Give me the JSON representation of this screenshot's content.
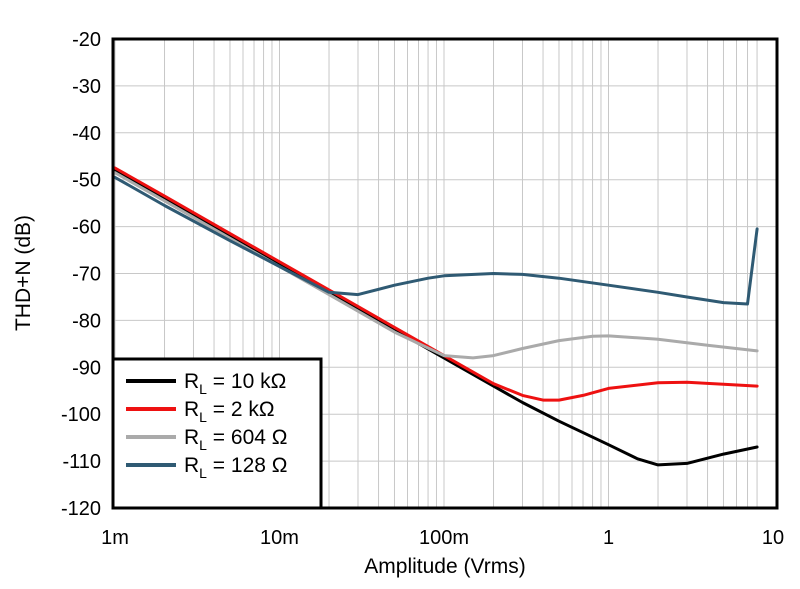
{
  "chart_data": {
    "type": "line",
    "title": "",
    "xlabel": "Amplitude (Vrms)",
    "ylabel": "THD+N (dB)",
    "xscale": "log",
    "xlim": [
      0.001,
      8
    ],
    "ylim": [
      -120,
      -20
    ],
    "x_ticks": [
      0.001,
      0.01,
      0.1,
      1,
      10
    ],
    "x_tick_labels": [
      "1m",
      "10m",
      "100m",
      "1",
      "10"
    ],
    "y_ticks": [
      -20,
      -30,
      -40,
      -50,
      -60,
      -70,
      -80,
      -90,
      -100,
      -110,
      -120
    ],
    "y_tick_labels": [
      "-20",
      "-30",
      "-40",
      "-50",
      "-60",
      "-70",
      "-80",
      "-90",
      "-100",
      "-110",
      "-120"
    ],
    "grid": true,
    "legend_position": "bottom-left",
    "series": [
      {
        "name": "R_L = 10 kΩ",
        "label_main": "R",
        "label_sub": "L",
        "label_rest": " = 10 kΩ",
        "color": "#000000",
        "x": [
          0.001,
          0.002,
          0.005,
          0.01,
          0.02,
          0.05,
          0.1,
          0.2,
          0.3,
          0.5,
          1.0,
          1.5,
          2.0,
          3.0,
          5.0,
          8.0
        ],
        "y": [
          -48,
          -54,
          -62,
          -68,
          -74,
          -82,
          -88,
          -94,
          -97.5,
          -101.5,
          -106.5,
          -109.5,
          -110.8,
          -110.5,
          -108.5,
          -107
        ]
      },
      {
        "name": "R_L = 2 kΩ",
        "label_main": "R",
        "label_sub": "L",
        "label_rest": " = 2 kΩ",
        "color": "#ee1111",
        "x": [
          0.001,
          0.002,
          0.005,
          0.01,
          0.02,
          0.05,
          0.1,
          0.2,
          0.3,
          0.4,
          0.5,
          0.7,
          1.0,
          2.0,
          3.0,
          5.0,
          8.0
        ],
        "y": [
          -47.5,
          -53.5,
          -61.5,
          -67.5,
          -73.5,
          -81.5,
          -87.5,
          -93.5,
          -96,
          -97,
          -97,
          -96,
          -94.5,
          -93.3,
          -93.2,
          -93.6,
          -94
        ]
      },
      {
        "name": "R_L = 604 Ω",
        "label_main": "R",
        "label_sub": "L",
        "label_rest": " = 604 Ω",
        "color": "#aaaaaa",
        "x": [
          0.001,
          0.002,
          0.005,
          0.01,
          0.02,
          0.05,
          0.1,
          0.15,
          0.2,
          0.3,
          0.5,
          0.8,
          1.0,
          2.0,
          4.0,
          8.0
        ],
        "y": [
          -48.5,
          -54.5,
          -62.5,
          -68.5,
          -74.5,
          -82.5,
          -87.5,
          -88,
          -87.5,
          -86,
          -84.3,
          -83.4,
          -83.3,
          -84,
          -85.3,
          -86.5
        ]
      },
      {
        "name": "R_L = 128 Ω",
        "label_main": "R",
        "label_sub": "L",
        "label_rest": " = 128 Ω",
        "color": "#2f5a73",
        "x": [
          0.001,
          0.002,
          0.005,
          0.01,
          0.02,
          0.03,
          0.05,
          0.08,
          0.1,
          0.2,
          0.3,
          0.5,
          1.0,
          2.0,
          3.0,
          5.0,
          7.0,
          8.0
        ],
        "y": [
          -49.5,
          -55.5,
          -63,
          -68.5,
          -74,
          -74.5,
          -72.5,
          -71,
          -70.5,
          -70,
          -70.2,
          -71,
          -72.5,
          -74,
          -75,
          -76.2,
          -76.5,
          -60.5
        ]
      }
    ]
  }
}
